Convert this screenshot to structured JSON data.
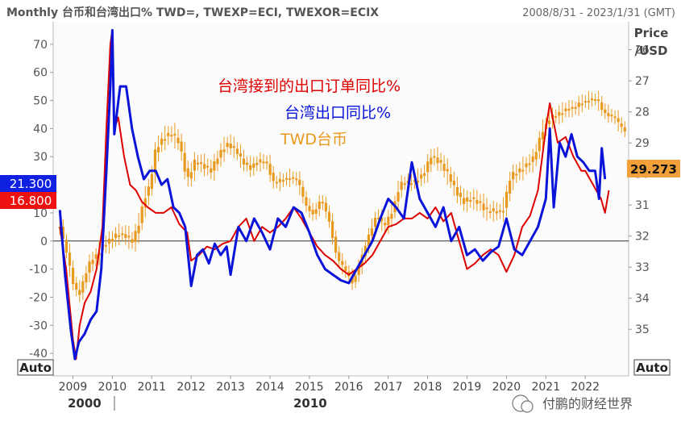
{
  "header": {
    "title": "Monthly 台币和台湾出口% TWD=, TWEXP=ECI, TWEXOR=ECIX",
    "date_range": "2008/8/31 - 2023/1/31 (GMT)"
  },
  "right_axis_title_line1": "Price",
  "right_axis_title_line2": "/USD",
  "auto_left": "Auto",
  "auto_right": "Auto",
  "badges": {
    "blue_value": "21.300",
    "red_value": "16.800",
    "twd_value": "29.273"
  },
  "watermark": "付鹏的财经世界",
  "colors": {
    "orders": "#dd0000",
    "exports": "#0a14d8",
    "twd": "#e89a1e",
    "plot_bg": "#fbfbfb",
    "zero_line": "#333333"
  },
  "chart_data": {
    "type": "line",
    "left_axis": {
      "ylim": [
        -48,
        78
      ],
      "ticks": [
        "70",
        "60",
        "50",
        "40",
        "30",
        "20",
        "10",
        "0",
        "-10",
        "-20",
        "-30",
        "-40"
      ]
    },
    "right_axis": {
      "inverted": true,
      "ylim": [
        25.1,
        36.5
      ],
      "ticks": [
        "26",
        "27",
        "28",
        "29",
        "30",
        "31",
        "32",
        "33",
        "34",
        "35"
      ]
    },
    "x_ticks": [
      "2009",
      "2010",
      "2011",
      "2012",
      "2013",
      "2014",
      "2015",
      "2016",
      "2017",
      "2018",
      "2019",
      "2020",
      "2021",
      "2022"
    ],
    "x_major_labels": [
      "2000",
      "2010"
    ],
    "series": [
      {
        "name": "台湾接到的出口订单同比%",
        "color": "#dd0000",
        "axis": "left",
        "x": [
          2008.67,
          2008.83,
          2009.0,
          2009.08,
          2009.17,
          2009.3,
          2009.45,
          2009.6,
          2009.75,
          2009.85,
          2009.95,
          2010.0,
          2010.05,
          2010.15,
          2010.3,
          2010.45,
          2010.6,
          2010.75,
          2010.9,
          2011.1,
          2011.3,
          2011.5,
          2011.7,
          2011.9,
          2012.0,
          2012.2,
          2012.4,
          2012.6,
          2012.8,
          2013.0,
          2013.2,
          2013.4,
          2013.6,
          2013.8,
          2014.0,
          2014.2,
          2014.4,
          2014.6,
          2014.8,
          2015.0,
          2015.2,
          2015.4,
          2015.6,
          2015.8,
          2016.0,
          2016.2,
          2016.4,
          2016.6,
          2016.8,
          2017.0,
          2017.2,
          2017.4,
          2017.6,
          2017.8,
          2018.0,
          2018.2,
          2018.4,
          2018.6,
          2018.8,
          2019.0,
          2019.2,
          2019.4,
          2019.6,
          2019.8,
          2020.0,
          2020.1,
          2020.2,
          2020.4,
          2020.6,
          2020.8,
          2021.0,
          2021.1,
          2021.3,
          2021.5,
          2021.7,
          2021.9,
          2022.0,
          2022.2,
          2022.4,
          2022.5,
          2022.6
        ],
        "values": [
          5,
          -10,
          -35,
          -42,
          -30,
          -22,
          -18,
          -10,
          5,
          40,
          70,
          75,
          40,
          44,
          30,
          20,
          18,
          14,
          12,
          10,
          10,
          12,
          6,
          3,
          -7,
          -5,
          -2,
          -3,
          -1,
          0,
          5,
          8,
          0,
          5,
          3,
          5,
          8,
          12,
          8,
          3,
          -2,
          -5,
          -7,
          -10,
          -12,
          -10,
          -8,
          -5,
          0,
          5,
          6,
          8,
          8,
          10,
          8,
          12,
          7,
          10,
          0,
          -10,
          -8,
          -5,
          -3,
          -5,
          -11,
          -8,
          -5,
          5,
          9,
          18,
          40,
          49,
          35,
          37,
          30,
          25,
          25,
          20,
          15,
          10,
          18
        ]
      },
      {
        "name": "台湾出口同比%",
        "color": "#0a14d8",
        "axis": "left",
        "x": [
          2008.67,
          2008.8,
          2008.95,
          2009.05,
          2009.15,
          2009.3,
          2009.45,
          2009.6,
          2009.72,
          2009.85,
          2009.95,
          2010.0,
          2010.05,
          2010.2,
          2010.35,
          2010.5,
          2010.65,
          2010.8,
          2010.95,
          2011.1,
          2011.25,
          2011.4,
          2011.55,
          2011.7,
          2011.85,
          2012.0,
          2012.15,
          2012.3,
          2012.45,
          2012.6,
          2012.75,
          2012.9,
          2013.0,
          2013.2,
          2013.4,
          2013.6,
          2013.8,
          2014.0,
          2014.2,
          2014.4,
          2014.6,
          2014.8,
          2015.0,
          2015.2,
          2015.4,
          2015.6,
          2015.8,
          2016.0,
          2016.2,
          2016.4,
          2016.6,
          2016.8,
          2017.0,
          2017.2,
          2017.4,
          2017.6,
          2017.8,
          2018.0,
          2018.2,
          2018.4,
          2018.6,
          2018.8,
          2019.0,
          2019.2,
          2019.4,
          2019.6,
          2019.8,
          2020.0,
          2020.2,
          2020.4,
          2020.6,
          2020.8,
          2021.0,
          2021.1,
          2021.2,
          2021.35,
          2021.5,
          2021.65,
          2021.8,
          2021.95,
          2022.1,
          2022.25,
          2022.35,
          2022.42,
          2022.5
        ],
        "values": [
          11,
          -12,
          -32,
          -42,
          -36,
          -33,
          -28,
          -25,
          -10,
          25,
          55,
          75,
          38,
          55,
          55,
          40,
          30,
          22,
          25,
          25,
          20,
          22,
          12,
          10,
          5,
          -16,
          -5,
          -3,
          -8,
          -1,
          -5,
          -2,
          -12,
          5,
          0,
          8,
          3,
          -3,
          8,
          5,
          12,
          10,
          3,
          -5,
          -10,
          -12,
          -14,
          -15,
          -10,
          -5,
          0,
          8,
          15,
          12,
          8,
          28,
          15,
          10,
          5,
          12,
          0,
          5,
          -5,
          -3,
          -7,
          -4,
          -2,
          8,
          -3,
          -5,
          0,
          5,
          15,
          40,
          12,
          35,
          30,
          38,
          30,
          28,
          25,
          25,
          15,
          33,
          22
        ]
      },
      {
        "name": "TWD台币",
        "color": "#e89a1e",
        "axis": "right",
        "x": [
          2008.67,
          2008.85,
          2009.0,
          2009.15,
          2009.3,
          2009.45,
          2009.6,
          2009.75,
          2009.9,
          2010.05,
          2010.2,
          2010.35,
          2010.5,
          2010.65,
          2010.8,
          2010.95,
          2011.1,
          2011.3,
          2011.5,
          2011.7,
          2011.9,
          2012.1,
          2012.3,
          2012.5,
          2012.7,
          2012.9,
          2013.1,
          2013.3,
          2013.5,
          2013.7,
          2013.9,
          2014.1,
          2014.3,
          2014.5,
          2014.7,
          2014.9,
          2015.1,
          2015.3,
          2015.5,
          2015.7,
          2015.9,
          2016.1,
          2016.3,
          2016.5,
          2016.7,
          2016.9,
          2017.1,
          2017.3,
          2017.5,
          2017.7,
          2017.9,
          2018.1,
          2018.3,
          2018.5,
          2018.7,
          2018.9,
          2019.1,
          2019.3,
          2019.5,
          2019.7,
          2019.9,
          2020.1,
          2020.3,
          2020.5,
          2020.7,
          2020.9,
          2021.1,
          2021.3,
          2021.5,
          2021.7,
          2021.9,
          2022.1,
          2022.3,
          2022.45,
          2022.6,
          2022.75,
          2022.85,
          2023.0,
          2023.08
        ],
        "values": [
          31.7,
          32.6,
          33.5,
          33.9,
          33.3,
          32.8,
          32.6,
          32.3,
          32.2,
          32.0,
          31.9,
          32.0,
          32.2,
          31.7,
          30.8,
          30.4,
          29.2,
          28.8,
          28.7,
          29.0,
          30.2,
          29.6,
          29.7,
          29.9,
          29.4,
          29.0,
          29.2,
          29.6,
          29.8,
          29.6,
          29.6,
          30.3,
          30.2,
          30.1,
          30.2,
          31.0,
          31.3,
          30.8,
          31.5,
          32.7,
          33.1,
          33.5,
          32.8,
          32.0,
          31.3,
          31.7,
          31.2,
          30.3,
          30.3,
          30.2,
          30.0,
          29.4,
          29.6,
          30.0,
          30.5,
          30.9,
          30.8,
          30.9,
          31.2,
          31.2,
          31.2,
          30.1,
          29.9,
          29.7,
          29.5,
          28.6,
          28.2,
          28.1,
          27.9,
          27.9,
          27.7,
          27.6,
          27.6,
          28.0,
          28.1,
          28.2,
          28.4,
          28.6,
          29.273
        ]
      }
    ],
    "annotations": [
      "台湾接到的出口订单同比%",
      "台湾出口同比%",
      "TWD台币"
    ]
  }
}
